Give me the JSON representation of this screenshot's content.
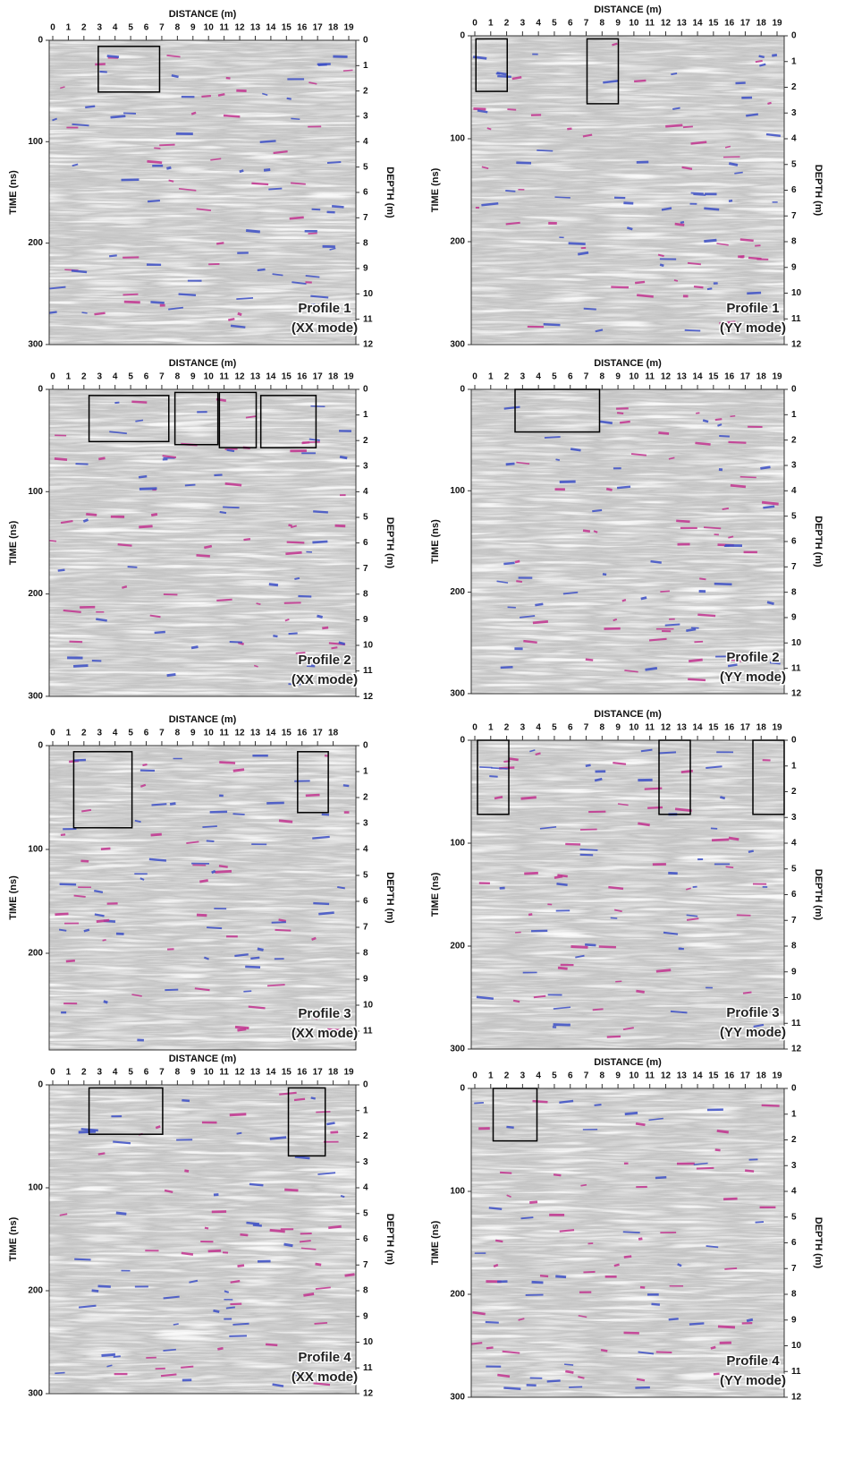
{
  "panels": [
    {
      "x_axis_label": "DISTANCE (m)",
      "y_axis_label": "TIME (ns)",
      "y2_axis_label": "DEPTH (m)",
      "x_ticks": [
        0,
        1,
        2,
        3,
        4,
        5,
        6,
        7,
        8,
        9,
        10,
        11,
        12,
        13,
        14,
        15,
        16,
        17,
        18,
        19
      ],
      "time_ticks": [
        0,
        100,
        200,
        300
      ],
      "depth_ticks": [
        0,
        1,
        2,
        3,
        4,
        5,
        6,
        7,
        8,
        9,
        10,
        11,
        12
      ],
      "profile": "Profile 1",
      "mode": "(XX mode)"
    },
    {
      "x_axis_label": "DISTANCE (m)",
      "y_axis_label": "TIME (ns)",
      "y2_axis_label": "DEPTH (m)",
      "x_ticks": [
        0,
        1,
        2,
        3,
        4,
        5,
        6,
        7,
        8,
        9,
        10,
        11,
        12,
        13,
        14,
        15,
        16,
        17,
        18,
        19
      ],
      "time_ticks": [
        0,
        100,
        200,
        300
      ],
      "depth_ticks": [
        0,
        1,
        2,
        3,
        4,
        5,
        6,
        7,
        8,
        9,
        10,
        11,
        12
      ],
      "profile": "Profile 1",
      "mode": "(YY mode)"
    },
    {
      "x_axis_label": "DISTANCE (m)",
      "y_axis_label": "TIME (ns)",
      "y2_axis_label": "DEPTH (m)",
      "x_ticks": [
        0,
        1,
        2,
        3,
        4,
        5,
        6,
        7,
        8,
        9,
        10,
        11,
        12,
        13,
        14,
        15,
        16,
        17,
        18,
        19
      ],
      "time_ticks": [
        0,
        100,
        200,
        300
      ],
      "depth_ticks": [
        0,
        1,
        2,
        3,
        4,
        5,
        6,
        7,
        8,
        9,
        10,
        11,
        12
      ],
      "profile": "Profile 2",
      "mode": "(XX mode)"
    },
    {
      "x_axis_label": "DISTANCE (m)",
      "y_axis_label": "TIME (ns)",
      "y2_axis_label": "DEPTH (m)",
      "x_ticks": [
        0,
        1,
        2,
        3,
        4,
        5,
        6,
        7,
        8,
        9,
        10,
        11,
        12,
        13,
        14,
        15,
        16,
        17,
        18,
        19
      ],
      "time_ticks": [
        0,
        100,
        200,
        300
      ],
      "depth_ticks": [
        0,
        1,
        2,
        3,
        4,
        5,
        6,
        7,
        8,
        9,
        10,
        11,
        12
      ],
      "profile": "Profile 2",
      "mode": "(YY mode)"
    },
    {
      "x_axis_label": "DISTANCE (m)",
      "y_axis_label": "TIME (ns)",
      "y2_axis_label": "DEPTH (m)",
      "x_ticks": [
        0,
        1,
        2,
        3,
        4,
        5,
        6,
        7,
        8,
        9,
        10,
        11,
        12,
        13,
        14,
        15,
        16,
        17,
        18
      ],
      "time_ticks": [
        0,
        100,
        200
      ],
      "depth_ticks": [
        0,
        1,
        2,
        3,
        4,
        5,
        6,
        7,
        8,
        9,
        10,
        11
      ],
      "profile": "Profile 3",
      "mode": "(XX mode)"
    },
    {
      "x_axis_label": "DISTANCE (m)",
      "y_axis_label": "TIME (ns)",
      "y2_axis_label": "DEPTH (m)",
      "x_ticks": [
        0,
        1,
        2,
        3,
        4,
        5,
        6,
        7,
        8,
        9,
        10,
        11,
        12,
        13,
        14,
        15,
        16,
        17,
        18,
        19
      ],
      "time_ticks": [
        0,
        100,
        200,
        300
      ],
      "depth_ticks": [
        0,
        1,
        2,
        3,
        4,
        5,
        6,
        7,
        8,
        9,
        10,
        11,
        12
      ],
      "profile": "Profile 3",
      "mode": "(YY mode)"
    },
    {
      "x_axis_label": "DISTANCE (m)",
      "y_axis_label": "TIME (ns)",
      "y2_axis_label": "DEPTH (m)",
      "x_ticks": [
        0,
        1,
        2,
        3,
        4,
        5,
        6,
        7,
        8,
        9,
        10,
        11,
        12,
        13,
        14,
        15,
        16,
        17,
        18,
        19
      ],
      "time_ticks": [
        0,
        100,
        200,
        300
      ],
      "depth_ticks": [
        0,
        1,
        2,
        3,
        4,
        5,
        6,
        7,
        8,
        9,
        10,
        11,
        12
      ],
      "profile": "Profile 4",
      "mode": "(XX mode)"
    },
    {
      "x_axis_label": "DISTANCE (m)",
      "y_axis_label": "TIME (ns)",
      "y2_axis_label": "DEPTH (m)",
      "x_ticks": [
        0,
        1,
        2,
        3,
        4,
        5,
        6,
        7,
        8,
        9,
        10,
        11,
        12,
        13,
        14,
        15,
        16,
        17,
        18,
        19
      ],
      "time_ticks": [
        0,
        100,
        200,
        300
      ],
      "depth_ticks": [
        0,
        1,
        2,
        3,
        4,
        5,
        6,
        7,
        8,
        9,
        10,
        11,
        12
      ],
      "profile": "Profile 4",
      "mode": "(YY mode)"
    }
  ]
}
